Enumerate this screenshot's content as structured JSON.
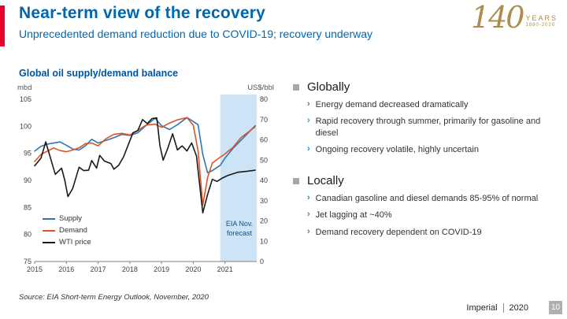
{
  "header": {
    "title": "Near-term view of the recovery",
    "subtitle": "Unprecedented demand reduction due to COVID-19; recovery underway"
  },
  "logo": {
    "number": "140",
    "years": "YEARS",
    "range": "1880-2020"
  },
  "chart": {
    "title": "Global oil supply/demand balance",
    "left_axis_label": "mbd",
    "right_axis_label": "US$/bbl",
    "forecast_label": "EIA Nov. forecast",
    "source": "Source: EIA Short-term Energy Outlook, November, 2020"
  },
  "chart_data": {
    "type": "line",
    "title": "Global oil supply/demand balance",
    "x_range": [
      2015,
      2022
    ],
    "x_ticks": [
      2015,
      2016,
      2017,
      2018,
      2019,
      2020,
      2021
    ],
    "left_axis": {
      "label": "mbd",
      "min": 75,
      "max": 105,
      "ticks": [
        75,
        80,
        85,
        90,
        95,
        100,
        105
      ]
    },
    "right_axis": {
      "label": "US$/bbl",
      "min": 0,
      "max": 80,
      "ticks": [
        0,
        10,
        20,
        30,
        40,
        50,
        60,
        70,
        80
      ]
    },
    "grid": false,
    "legend_position": "inside-bottom-left",
    "forecast_band": {
      "from": 2020.85,
      "to": 2022,
      "label": "EIA Nov. forecast",
      "color": "#cde3f6"
    },
    "series": [
      {
        "name": "Supply",
        "axis": "left",
        "color": "#2e75b6",
        "points": [
          [
            2015.0,
            95.4
          ],
          [
            2015.2,
            96.3
          ],
          [
            2015.4,
            96.7
          ],
          [
            2015.6,
            96.9
          ],
          [
            2015.8,
            97.1
          ],
          [
            2016.0,
            96.5
          ],
          [
            2016.2,
            95.8
          ],
          [
            2016.4,
            95.6
          ],
          [
            2016.6,
            96.4
          ],
          [
            2016.8,
            97.6
          ],
          [
            2017.0,
            96.9
          ],
          [
            2017.25,
            97.4
          ],
          [
            2017.5,
            97.9
          ],
          [
            2017.75,
            98.5
          ],
          [
            2018.0,
            98.3
          ],
          [
            2018.25,
            98.8
          ],
          [
            2018.5,
            100.1
          ],
          [
            2018.8,
            101.5
          ],
          [
            2019.0,
            100.1
          ],
          [
            2019.25,
            99.4
          ],
          [
            2019.5,
            100.3
          ],
          [
            2019.8,
            101.6
          ],
          [
            2020.0,
            100.9
          ],
          [
            2020.15,
            100.3
          ],
          [
            2020.3,
            94.8
          ],
          [
            2020.45,
            91.4
          ],
          [
            2020.6,
            91.8
          ],
          [
            2020.85,
            92.8
          ],
          [
            2021.0,
            94.1
          ],
          [
            2021.25,
            95.9
          ],
          [
            2021.5,
            97.4
          ],
          [
            2021.75,
            98.9
          ],
          [
            2021.95,
            100.1
          ]
        ]
      },
      {
        "name": "Demand",
        "axis": "left",
        "color": "#dd5422",
        "points": [
          [
            2015.0,
            93.5
          ],
          [
            2015.2,
            94.8
          ],
          [
            2015.4,
            95.4
          ],
          [
            2015.6,
            96.0
          ],
          [
            2015.8,
            95.5
          ],
          [
            2016.0,
            95.3
          ],
          [
            2016.2,
            95.6
          ],
          [
            2016.4,
            96.0
          ],
          [
            2016.6,
            96.8
          ],
          [
            2016.8,
            96.9
          ],
          [
            2017.0,
            96.4
          ],
          [
            2017.25,
            97.7
          ],
          [
            2017.5,
            98.5
          ],
          [
            2017.75,
            98.7
          ],
          [
            2018.0,
            98.4
          ],
          [
            2018.25,
            99.2
          ],
          [
            2018.5,
            100.2
          ],
          [
            2018.8,
            100.4
          ],
          [
            2019.0,
            99.8
          ],
          [
            2019.25,
            100.6
          ],
          [
            2019.5,
            101.2
          ],
          [
            2019.8,
            101.6
          ],
          [
            2020.0,
            100.2
          ],
          [
            2020.15,
            95.5
          ],
          [
            2020.3,
            85.4
          ],
          [
            2020.45,
            90.5
          ],
          [
            2020.6,
            93.2
          ],
          [
            2020.85,
            94.3
          ],
          [
            2021.0,
            94.9
          ],
          [
            2021.25,
            96.1
          ],
          [
            2021.5,
            97.9
          ],
          [
            2021.75,
            99.0
          ],
          [
            2021.95,
            99.9
          ]
        ]
      },
      {
        "name": "WTI price",
        "axis": "right",
        "color": "#1a1a1a",
        "points": [
          [
            2015.0,
            47.2
          ],
          [
            2015.2,
            51.0
          ],
          [
            2015.35,
            59.0
          ],
          [
            2015.5,
            51.0
          ],
          [
            2015.65,
            43.0
          ],
          [
            2015.85,
            46.0
          ],
          [
            2015.95,
            40.0
          ],
          [
            2016.05,
            32.0
          ],
          [
            2016.2,
            36.0
          ],
          [
            2016.4,
            46.5
          ],
          [
            2016.55,
            44.8
          ],
          [
            2016.7,
            45.0
          ],
          [
            2016.8,
            49.8
          ],
          [
            2016.95,
            46.0
          ],
          [
            2017.05,
            52.3
          ],
          [
            2017.2,
            49.5
          ],
          [
            2017.4,
            48.3
          ],
          [
            2017.5,
            45.5
          ],
          [
            2017.65,
            47.5
          ],
          [
            2017.8,
            51.5
          ],
          [
            2017.95,
            57.5
          ],
          [
            2018.1,
            63.5
          ],
          [
            2018.25,
            64.5
          ],
          [
            2018.4,
            70.0
          ],
          [
            2018.55,
            68.0
          ],
          [
            2018.7,
            70.5
          ],
          [
            2018.85,
            70.8
          ],
          [
            2018.95,
            57.0
          ],
          [
            2019.05,
            50.0
          ],
          [
            2019.2,
            56.0
          ],
          [
            2019.35,
            63.0
          ],
          [
            2019.5,
            55.0
          ],
          [
            2019.65,
            57.0
          ],
          [
            2019.8,
            54.5
          ],
          [
            2019.95,
            58.5
          ],
          [
            2020.1,
            52.0
          ],
          [
            2020.3,
            24.0
          ],
          [
            2020.45,
            33.0
          ],
          [
            2020.6,
            40.5
          ],
          [
            2020.75,
            39.5
          ],
          [
            2020.9,
            41.0
          ],
          [
            2021.1,
            42.5
          ],
          [
            2021.4,
            44.0
          ],
          [
            2021.7,
            44.5
          ],
          [
            2021.95,
            45.0
          ]
        ]
      }
    ]
  },
  "bullets": [
    {
      "header": "Globally",
      "items": [
        "Energy demand decreased dramatically",
        "Rapid recovery through summer, primarily for gasoline and diesel",
        "Ongoing recovery volatile, highly uncertain"
      ]
    },
    {
      "header": "Locally",
      "items": [
        "Canadian gasoline and diesel demands 85-95% of normal",
        "Jet lagging at ~40%",
        "Demand recovery dependent on COVID-19"
      ]
    }
  ],
  "footer": {
    "brand": "Imperial",
    "year": "2020",
    "page": "10"
  }
}
